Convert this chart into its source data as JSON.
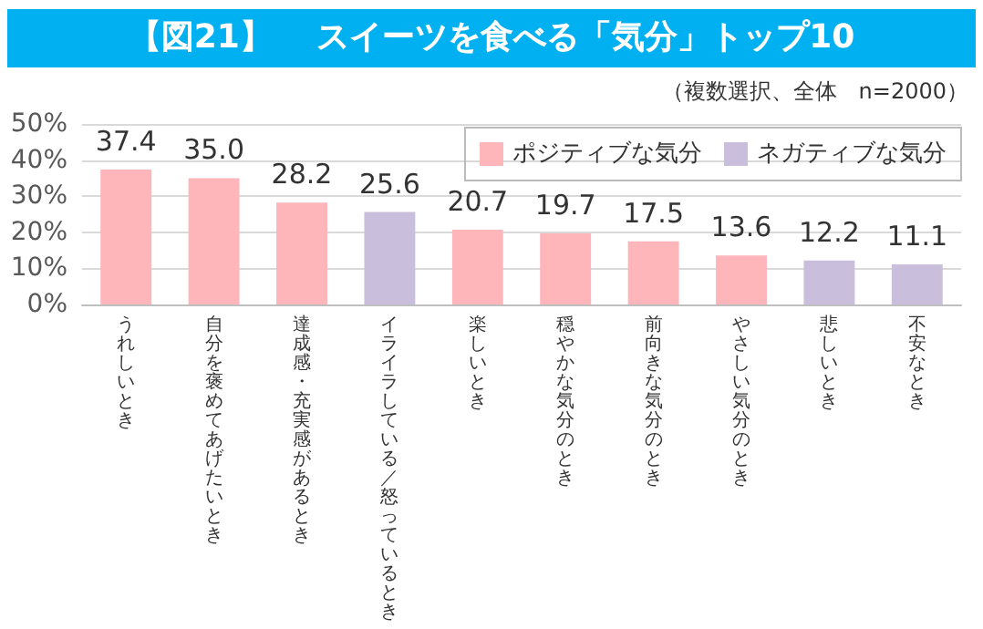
{
  "chart_data": {
    "type": "bar",
    "title": "【図21】　 スイーツを食べる「気分」トップ10",
    "subtitle": "（複数選択、全体　n=2000）",
    "categories": [
      "うれしいとき",
      "自分を褒めてあげたいとき",
      "達成感・充実感があるとき",
      "イライラしている／怒っているとき",
      "楽しいとき",
      "穏やかな気分のとき",
      "前向きな気分のとき",
      "やさしい気分のとき",
      "悲しいとき",
      "不安なとき"
    ],
    "series": [
      {
        "name": "ポジティブな気分",
        "color": "#ffb6bb",
        "values": [
          37.4,
          35.0,
          28.2,
          null,
          20.7,
          19.7,
          17.5,
          13.6,
          null,
          null
        ],
        "value_labels": [
          "37.4",
          "35.0",
          "28.2",
          null,
          "20.7",
          "19.7",
          "17.5",
          "13.6",
          null,
          null
        ]
      },
      {
        "name": "ネガティブな気分",
        "color": "#c9bfdc",
        "values": [
          null,
          null,
          null,
          25.6,
          null,
          null,
          null,
          null,
          12.2,
          11.1
        ],
        "value_labels": [
          null,
          null,
          null,
          "25.6",
          null,
          null,
          null,
          null,
          "12.2",
          "11.1"
        ]
      }
    ],
    "ylim": [
      0,
      50
    ],
    "yticks": [
      {
        "value": 0,
        "label": "0%"
      },
      {
        "value": 10,
        "label": "10%"
      },
      {
        "value": 20,
        "label": "20%"
      },
      {
        "value": 30,
        "label": "30%"
      },
      {
        "value": 40,
        "label": "40%"
      },
      {
        "value": 50,
        "label": "50%"
      }
    ],
    "grid": "y",
    "legend": "top right"
  }
}
